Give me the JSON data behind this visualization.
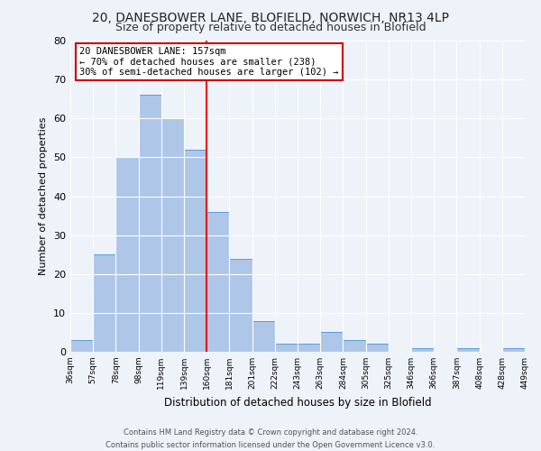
{
  "title": "20, DANESBOWER LANE, BLOFIELD, NORWICH, NR13 4LP",
  "subtitle": "Size of property relative to detached houses in Blofield",
  "xlabel": "Distribution of detached houses by size in Blofield",
  "ylabel": "Number of detached properties",
  "bar_labels": [
    "36sqm",
    "57sqm",
    "78sqm",
    "98sqm",
    "119sqm",
    "139sqm",
    "160sqm",
    "181sqm",
    "201sqm",
    "222sqm",
    "243sqm",
    "263sqm",
    "284sqm",
    "305sqm",
    "325sqm",
    "346sqm",
    "366sqm",
    "387sqm",
    "408sqm",
    "428sqm",
    "449sqm"
  ],
  "bar_values": [
    3,
    25,
    50,
    66,
    60,
    52,
    36,
    24,
    8,
    2,
    2,
    5,
    3,
    2,
    0,
    1,
    0,
    1,
    0,
    1
  ],
  "bar_color": "#aec6e8",
  "bar_edge_color": "#5a9fd4",
  "vline_color": "red",
  "ylim": [
    0,
    80
  ],
  "yticks": [
    0,
    10,
    20,
    30,
    40,
    50,
    60,
    70,
    80
  ],
  "annotation_title": "20 DANESBOWER LANE: 157sqm",
  "annotation_line1": "← 70% of detached houses are smaller (238)",
  "annotation_line2": "30% of semi-detached houses are larger (102) →",
  "annotation_box_color": "#ffffff",
  "annotation_box_edge": "#cc0000",
  "footer_line1": "Contains HM Land Registry data © Crown copyright and database right 2024.",
  "footer_line2": "Contains public sector information licensed under the Open Government Licence v3.0.",
  "background_color": "#eef2f9",
  "grid_color": "#ffffff",
  "title_fontsize": 10,
  "subtitle_fontsize": 9
}
